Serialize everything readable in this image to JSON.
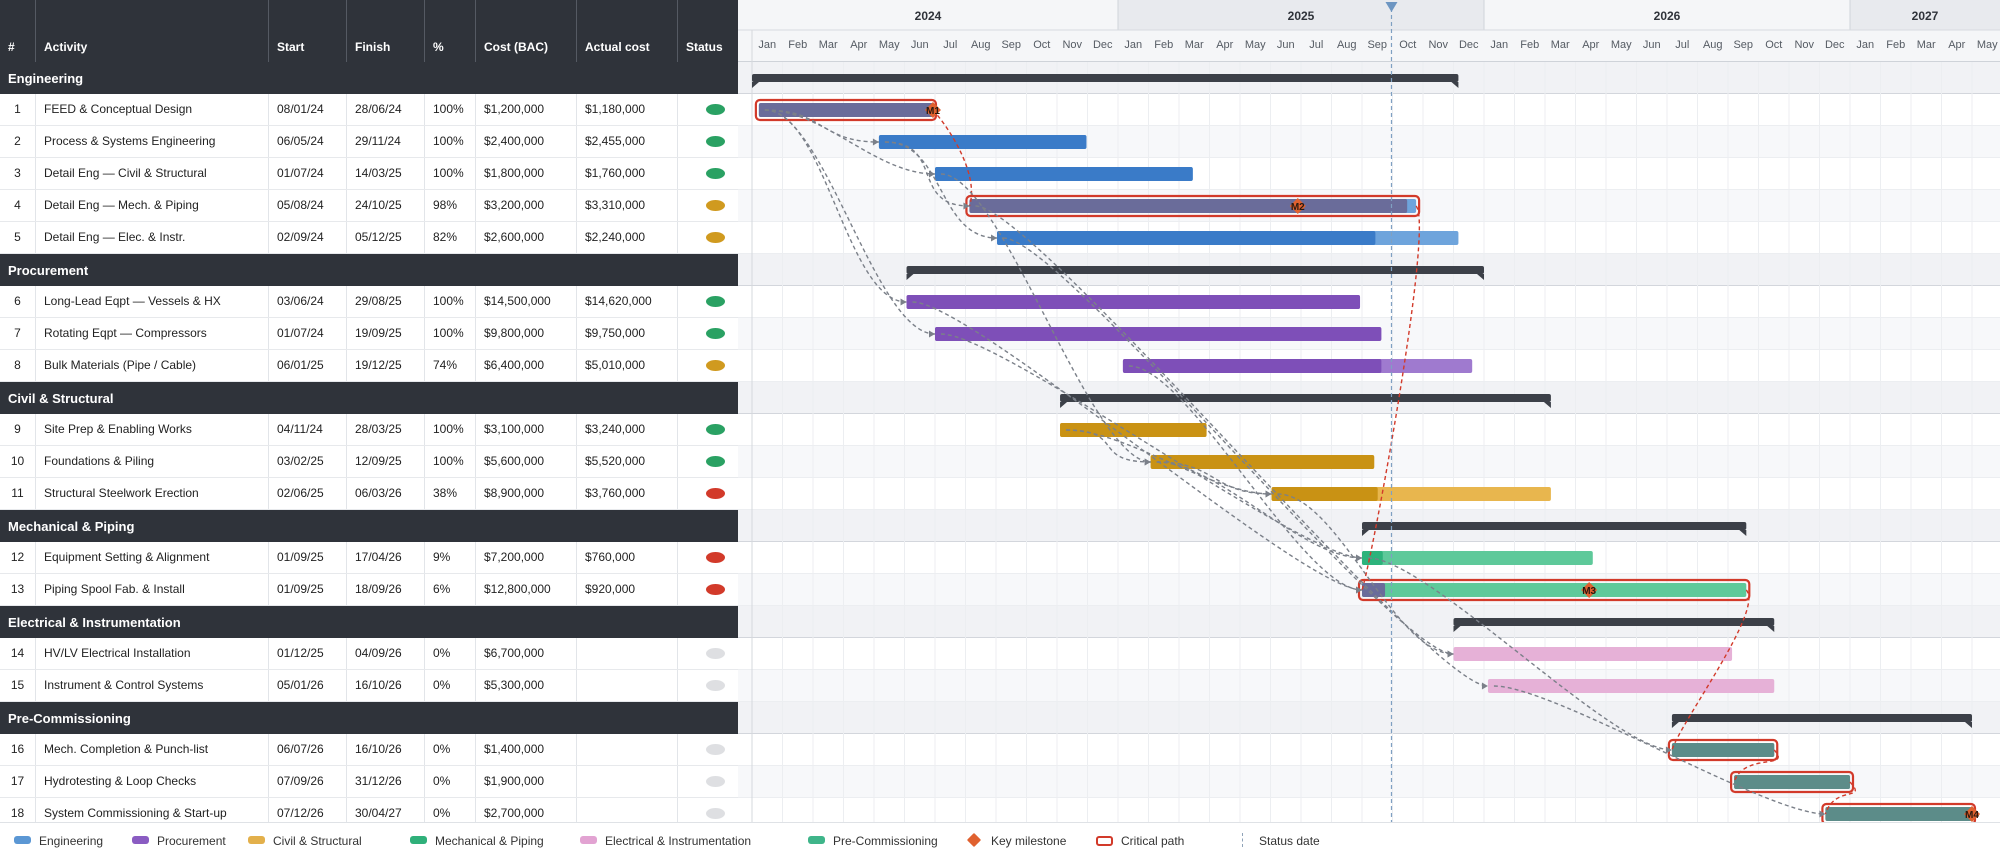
{
  "columns": {
    "num": "#",
    "activity": "Activity",
    "start": "Start",
    "finish": "Finish",
    "pct": "%",
    "cost": "Cost (BAC)",
    "actual": "Actual cost",
    "status": "Status"
  },
  "timeline": {
    "years": [
      "2024",
      "2025",
      "2026",
      "2027"
    ],
    "months": [
      "Jan",
      "Feb",
      "Mar",
      "Apr",
      "May",
      "Jun",
      "Jul",
      "Aug",
      "Sep",
      "Oct",
      "Nov",
      "Dec"
    ],
    "months_2027": [
      "Jan",
      "Feb",
      "Mar",
      "Apr",
      "May"
    ],
    "status_date": "2025-09-30"
  },
  "status_colors": {
    "green": "#2aa163",
    "amber": "#d09a1f",
    "red": "#d23a2a",
    "grey": "#dedfe2"
  },
  "groups": [
    {
      "name": "Engineering",
      "color": "#3a7bc8",
      "light": "#6ea4dc",
      "summary_start": "2024-01-01",
      "summary_end": "2025-12-05"
    },
    {
      "name": "Procurement",
      "color": "#7e4fb8",
      "light": "#9f7acf",
      "summary_start": "2024-06-03",
      "summary_end": "2025-12-31"
    },
    {
      "name": "Civil & Structural",
      "color": "#c99214",
      "light": "#e8b64e",
      "summary_start": "2024-11-04",
      "summary_end": "2026-03-06"
    },
    {
      "name": "Mechanical & Piping",
      "color": "#2db37b",
      "light": "#5ec99a",
      "summary_start": "2025-09-01",
      "summary_end": "2026-09-18"
    },
    {
      "name": "Electrical & Instrumentation",
      "color": "#dc97c9",
      "light": "#e6b1d7",
      "summary_start": "2025-12-01",
      "summary_end": "2026-10-16"
    },
    {
      "name": "Pre-Commissioning",
      "color": "#5c8c89",
      "light": "#7fa9a6",
      "summary_start": "2026-07-06",
      "summary_end": "2027-04-30"
    }
  ],
  "tasks": [
    {
      "id": "1",
      "group": 0,
      "name": "FEED & Conceptual Design",
      "start": "08/01/24",
      "finish": "28/06/24",
      "pct": "100%",
      "cost": "$1,200,000",
      "actual": "$1,180,000",
      "status": "green",
      "d_start": "2024-01-08",
      "d_end": "2024-06-28",
      "progress": 1.0,
      "critical": true,
      "milestone": "M1"
    },
    {
      "id": "2",
      "group": 0,
      "name": "Process & Systems Engineering",
      "start": "06/05/24",
      "finish": "29/11/24",
      "pct": "100%",
      "cost": "$2,400,000",
      "actual": "$2,455,000",
      "status": "green",
      "d_start": "2024-05-06",
      "d_end": "2024-11-29",
      "progress": 1.0,
      "critical": false
    },
    {
      "id": "3",
      "group": 0,
      "name": "Detail Eng — Civil & Structural",
      "start": "01/07/24",
      "finish": "14/03/25",
      "pct": "100%",
      "cost": "$1,800,000",
      "actual": "$1,760,000",
      "status": "green",
      "d_start": "2024-07-01",
      "d_end": "2025-03-14",
      "progress": 1.0,
      "critical": false
    },
    {
      "id": "4",
      "group": 0,
      "name": "Detail Eng — Mech. & Piping",
      "start": "05/08/24",
      "finish": "24/10/25",
      "pct": "98%",
      "cost": "$3,200,000",
      "actual": "$3,310,000",
      "status": "amber",
      "d_start": "2024-08-05",
      "d_end": "2025-10-24",
      "progress": 0.98,
      "critical": true,
      "milestone": "M2"
    },
    {
      "id": "5",
      "group": 0,
      "name": "Detail Eng — Elec. & Instr.",
      "start": "02/09/24",
      "finish": "05/12/25",
      "pct": "82%",
      "cost": "$2,600,000",
      "actual": "$2,240,000",
      "status": "amber",
      "d_start": "2024-09-02",
      "d_end": "2025-12-05",
      "progress": 0.82,
      "critical": false
    },
    {
      "id": "6",
      "group": 1,
      "name": "Long-Lead Eqpt — Vessels & HX",
      "start": "03/06/24",
      "finish": "29/08/25",
      "pct": "100%",
      "cost": "$14,500,000",
      "actual": "$14,620,000",
      "status": "green",
      "d_start": "2024-06-03",
      "d_end": "2025-08-29",
      "progress": 1.0,
      "critical": false
    },
    {
      "id": "7",
      "group": 1,
      "name": "Rotating Eqpt — Compressors",
      "start": "01/07/24",
      "finish": "19/09/25",
      "pct": "100%",
      "cost": "$9,800,000",
      "actual": "$9,750,000",
      "status": "green",
      "d_start": "2024-07-01",
      "d_end": "2025-09-19",
      "progress": 1.0,
      "critical": false
    },
    {
      "id": "8",
      "group": 1,
      "name": "Bulk Materials (Pipe / Cable)",
      "start": "06/01/25",
      "finish": "19/12/25",
      "pct": "74%",
      "cost": "$6,400,000",
      "actual": "$5,010,000",
      "status": "amber",
      "d_start": "2025-01-06",
      "d_end": "2025-12-19",
      "progress": 0.74,
      "critical": false
    },
    {
      "id": "9",
      "group": 2,
      "name": "Site Prep & Enabling Works",
      "start": "04/11/24",
      "finish": "28/03/25",
      "pct": "100%",
      "cost": "$3,100,000",
      "actual": "$3,240,000",
      "status": "green",
      "d_start": "2024-11-04",
      "d_end": "2025-03-28",
      "progress": 1.0,
      "critical": false
    },
    {
      "id": "10",
      "group": 2,
      "name": "Foundations & Piling",
      "start": "03/02/25",
      "finish": "12/09/25",
      "pct": "100%",
      "cost": "$5,600,000",
      "actual": "$5,520,000",
      "status": "green",
      "d_start": "2025-02-03",
      "d_end": "2025-09-12",
      "progress": 1.0,
      "critical": false
    },
    {
      "id": "11",
      "group": 2,
      "name": "Structural Steelwork Erection",
      "start": "02/06/25",
      "finish": "06/03/26",
      "pct": "38%",
      "cost": "$8,900,000",
      "actual": "$3,760,000",
      "status": "red",
      "d_start": "2025-06-02",
      "d_end": "2026-03-06",
      "progress": 0.38,
      "critical": false
    },
    {
      "id": "12",
      "group": 3,
      "name": "Equipment Setting & Alignment",
      "start": "01/09/25",
      "finish": "17/04/26",
      "pct": "9%",
      "cost": "$7,200,000",
      "actual": "$760,000",
      "status": "red",
      "d_start": "2025-09-01",
      "d_end": "2026-04-17",
      "progress": 0.09,
      "critical": false
    },
    {
      "id": "13",
      "group": 3,
      "name": "Piping Spool Fab. & Install",
      "start": "01/09/25",
      "finish": "18/09/26",
      "pct": "6%",
      "cost": "$12,800,000",
      "actual": "$920,000",
      "status": "red",
      "d_start": "2025-09-01",
      "d_end": "2026-09-18",
      "progress": 0.06,
      "critical": true,
      "milestone": "M3"
    },
    {
      "id": "14",
      "group": 4,
      "name": "HV/LV Electrical Installation",
      "start": "01/12/25",
      "finish": "04/09/26",
      "pct": "0%",
      "cost": "$6,700,000",
      "actual": "",
      "status": "grey",
      "d_start": "2025-12-01",
      "d_end": "2026-09-04",
      "progress": 0,
      "critical": false
    },
    {
      "id": "15",
      "group": 4,
      "name": "Instrument & Control Systems",
      "start": "05/01/26",
      "finish": "16/10/26",
      "pct": "0%",
      "cost": "$5,300,000",
      "actual": "",
      "status": "grey",
      "d_start": "2026-01-05",
      "d_end": "2026-10-16",
      "progress": 0,
      "critical": false
    },
    {
      "id": "16",
      "group": 5,
      "name": "Mech. Completion & Punch-list",
      "start": "06/07/26",
      "finish": "16/10/26",
      "pct": "0%",
      "cost": "$1,400,000",
      "actual": "",
      "status": "grey",
      "d_start": "2026-07-06",
      "d_end": "2026-10-16",
      "progress": 0,
      "critical": true
    },
    {
      "id": "17",
      "group": 5,
      "name": "Hydrotesting & Loop Checks",
      "start": "07/09/26",
      "finish": "31/12/26",
      "pct": "0%",
      "cost": "$1,900,000",
      "actual": "",
      "status": "grey",
      "d_start": "2026-09-07",
      "d_end": "2026-12-31",
      "progress": 0,
      "critical": true
    },
    {
      "id": "18",
      "group": 5,
      "name": "System Commissioning & Start-up",
      "start": "07/12/26",
      "finish": "30/04/27",
      "pct": "0%",
      "cost": "$2,700,000",
      "actual": "",
      "status": "grey",
      "d_start": "2026-12-07",
      "d_end": "2027-04-30",
      "progress": 0,
      "critical": true,
      "milestone": "M4"
    }
  ],
  "dependencies": [
    {
      "from": "1",
      "to": "2",
      "critical": false
    },
    {
      "from": "1",
      "to": "3",
      "critical": false
    },
    {
      "from": "1",
      "to": "6",
      "critical": false
    },
    {
      "from": "1",
      "to": "7",
      "critical": false
    },
    {
      "from": "1",
      "to": "4",
      "critical": true
    },
    {
      "from": "2",
      "to": "4",
      "critical": false
    },
    {
      "from": "2",
      "to": "5",
      "critical": false
    },
    {
      "from": "3",
      "to": "10",
      "critical": false
    },
    {
      "from": "6",
      "to": "13",
      "critical": false
    },
    {
      "from": "7",
      "to": "12",
      "critical": false
    },
    {
      "from": "8",
      "to": "13",
      "critical": false
    },
    {
      "from": "9",
      "to": "10",
      "critical": false
    },
    {
      "from": "9",
      "to": "11",
      "critical": false
    },
    {
      "from": "10",
      "to": "12",
      "critical": false
    },
    {
      "from": "10",
      "to": "11",
      "critical": false
    },
    {
      "from": "11",
      "to": "14",
      "critical": false
    },
    {
      "from": "12",
      "to": "16",
      "critical": false
    },
    {
      "from": "5",
      "to": "14",
      "critical": false
    },
    {
      "from": "4",
      "to": "15",
      "critical": false
    },
    {
      "from": "4",
      "to": "13",
      "critical": true
    },
    {
      "from": "13",
      "to": "16",
      "critical": true
    },
    {
      "from": "15",
      "to": "18",
      "critical": false
    },
    {
      "from": "16",
      "to": "17",
      "critical": true
    },
    {
      "from": "17",
      "to": "18",
      "critical": true
    }
  ],
  "legend": [
    {
      "label": "Engineering",
      "kind": "swatch",
      "color": "#5b97d4"
    },
    {
      "label": "Procurement",
      "kind": "swatch",
      "color": "#8a5cc2"
    },
    {
      "label": "Civil & Structural",
      "kind": "swatch",
      "color": "#e3b04b"
    },
    {
      "label": "Mechanical & Piping",
      "kind": "swatch",
      "color": "#2fb07a"
    },
    {
      "label": "Electrical & Instrumentation",
      "kind": "swatch",
      "color": "#e2a3d2"
    },
    {
      "label": "Pre-Commissioning",
      "kind": "swatch",
      "color": "#3fb58a"
    },
    {
      "label": "Key milestone",
      "kind": "diamond",
      "color": "#e0612f"
    },
    {
      "label": "Critical path",
      "kind": "critical",
      "color": "#d23a2a"
    },
    {
      "label": "Status date",
      "kind": "dashed",
      "color": "#8fa3b8"
    }
  ]
}
